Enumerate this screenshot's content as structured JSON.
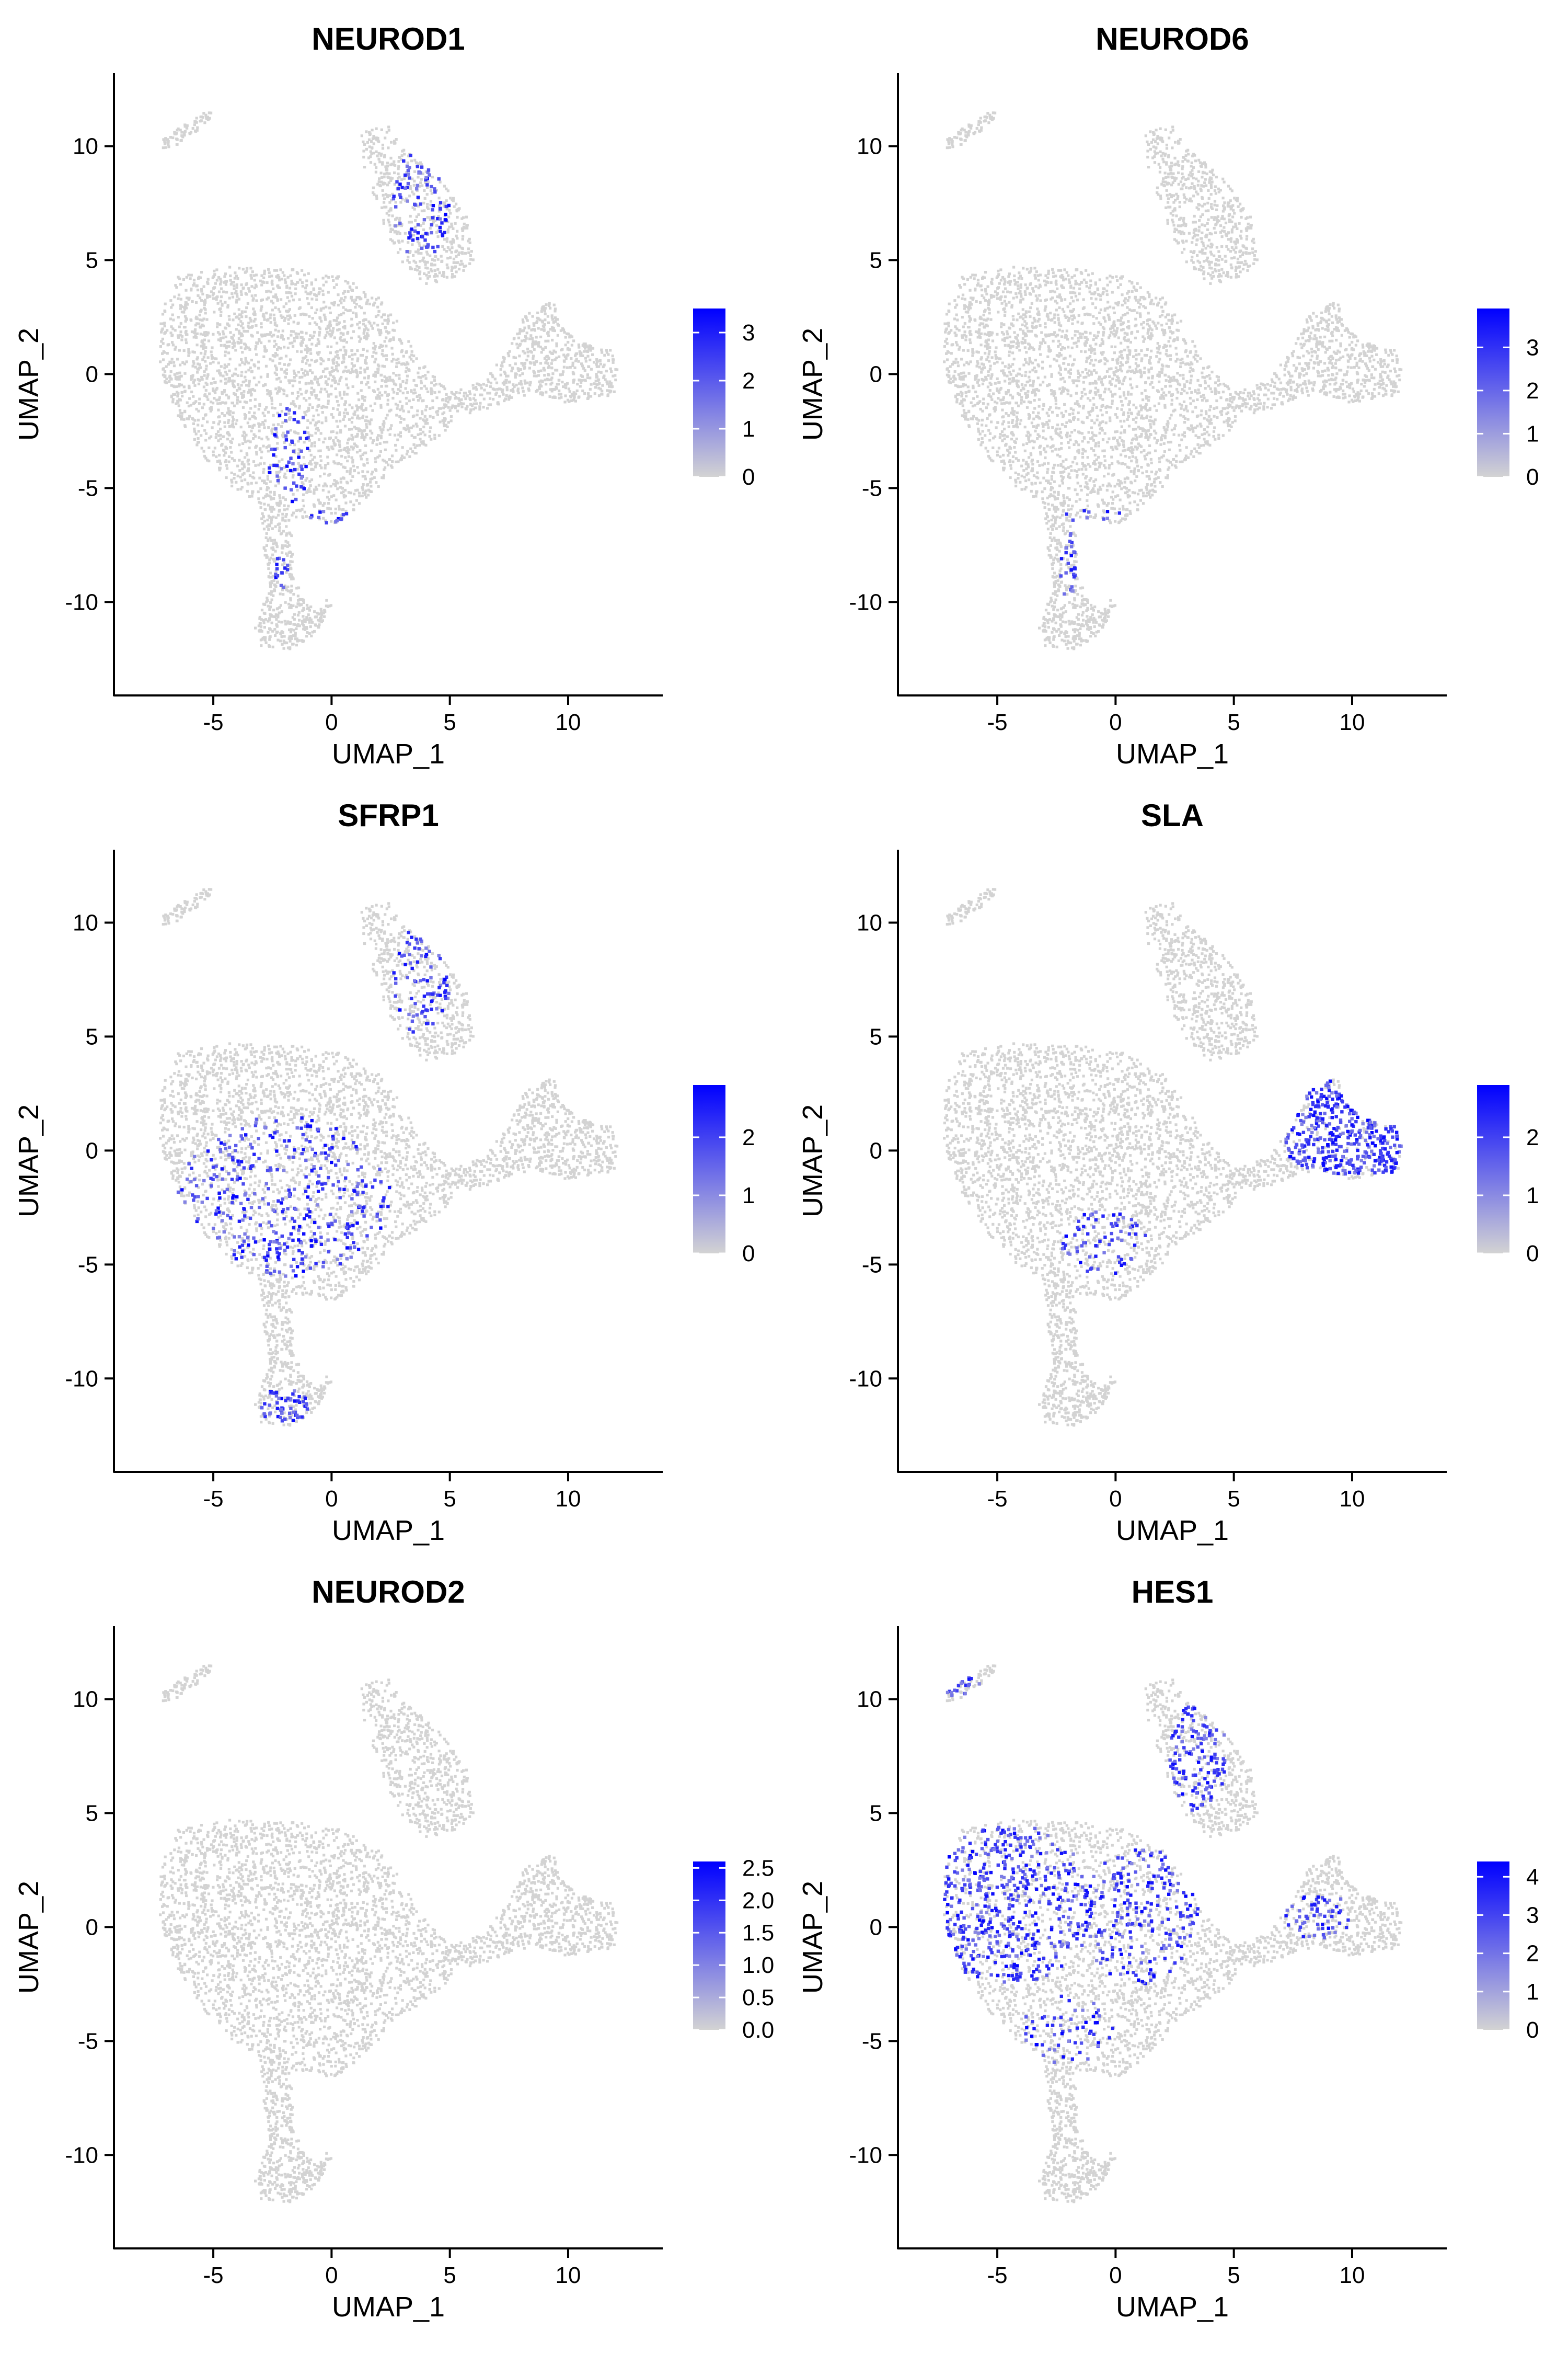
{
  "chart_data": [
    {
      "type": "scatter",
      "title": "NEUROD1",
      "xlabel": "UMAP_1",
      "ylabel": "UMAP_2",
      "xlim": [
        -9.2,
        14
      ],
      "ylim": [
        -14.1,
        13.2
      ],
      "x_ticks": [
        -5,
        0,
        5,
        10
      ],
      "y_ticks": [
        -10,
        -5,
        0,
        5,
        10
      ],
      "colorbar": {
        "low_color": "#d3d3d3",
        "high_color": "#0000ff",
        "min": 0,
        "max": 3.5,
        "ticks": [
          "0",
          "1",
          "2",
          "3"
        ]
      },
      "expression_regions": [
        {
          "x": -1.8,
          "y": -3.5,
          "rx": 0.9,
          "ry": 2.2,
          "level": 0.45
        },
        {
          "x": -2.1,
          "y": -8.5,
          "rx": 0.3,
          "ry": 1.2,
          "level": 0.35
        },
        {
          "x": 0.0,
          "y": -6.3,
          "rx": 1.0,
          "ry": 0.3,
          "level": 0.4
        },
        {
          "x": 3.8,
          "y": 7.5,
          "rx": 1.2,
          "ry": 2.5,
          "level": 0.35
        }
      ]
    },
    {
      "type": "scatter",
      "title": "NEUROD6",
      "xlabel": "UMAP_1",
      "ylabel": "UMAP_2",
      "xlim": [
        -9.2,
        14
      ],
      "ylim": [
        -14.1,
        13.2
      ],
      "x_ticks": [
        -5,
        0,
        5,
        10
      ],
      "y_ticks": [
        -10,
        -5,
        0,
        5,
        10
      ],
      "colorbar": {
        "low_color": "#d3d3d3",
        "high_color": "#0000ff",
        "min": 0,
        "max": 3.9,
        "ticks": [
          "0",
          "1",
          "2",
          "3"
        ]
      },
      "expression_regions": [
        {
          "x": -2.0,
          "y": -8.5,
          "rx": 0.35,
          "ry": 1.6,
          "level": 0.45
        },
        {
          "x": -1.0,
          "y": -6.2,
          "rx": 1.4,
          "ry": 0.3,
          "level": 0.35
        }
      ]
    },
    {
      "type": "scatter",
      "title": "SFRP1",
      "xlabel": "UMAP_1",
      "ylabel": "UMAP_2",
      "xlim": [
        -9.2,
        14
      ],
      "ylim": [
        -14.1,
        13.2
      ],
      "x_ticks": [
        -5,
        0,
        5,
        10
      ],
      "y_ticks": [
        -10,
        -5,
        0,
        5,
        10
      ],
      "colorbar": {
        "low_color": "#d3d3d3",
        "high_color": "#0000ff",
        "min": 0,
        "max": 2.9,
        "ticks": [
          "0",
          "1",
          "2"
        ]
      },
      "expression_regions": [
        {
          "x": -2.0,
          "y": -2.0,
          "rx": 4.5,
          "ry": 3.5,
          "level": 0.3
        },
        {
          "x": -1.8,
          "y": -3.8,
          "rx": 0.9,
          "ry": 1.8,
          "level": 0.45
        },
        {
          "x": -2.0,
          "y": -11.2,
          "rx": 1.0,
          "ry": 0.8,
          "level": 0.5
        },
        {
          "x": 3.8,
          "y": 7.5,
          "rx": 1.2,
          "ry": 2.5,
          "level": 0.35
        }
      ]
    },
    {
      "type": "scatter",
      "title": "SLA",
      "xlabel": "UMAP_1",
      "ylabel": "UMAP_2",
      "xlim": [
        -9.2,
        14
      ],
      "ylim": [
        -14.1,
        13.2
      ],
      "x_ticks": [
        -5,
        0,
        5,
        10
      ],
      "y_ticks": [
        -10,
        -5,
        0,
        5,
        10
      ],
      "colorbar": {
        "low_color": "#d3d3d3",
        "high_color": "#0000ff",
        "min": 0,
        "max": 2.9,
        "ticks": [
          "0",
          "1",
          "2"
        ]
      },
      "expression_regions": [
        {
          "x": 9.5,
          "y": 0.5,
          "rx": 2.5,
          "ry": 1.6,
          "level": 0.7
        },
        {
          "x": 8.8,
          "y": 2.2,
          "rx": 0.8,
          "ry": 1.0,
          "level": 0.6
        },
        {
          "x": 11.5,
          "y": 0.0,
          "rx": 1.0,
          "ry": 1.2,
          "level": 0.65
        },
        {
          "x": -0.5,
          "y": -4.0,
          "rx": 1.8,
          "ry": 1.5,
          "level": 0.3
        }
      ]
    },
    {
      "type": "scatter",
      "title": "NEUROD2",
      "xlabel": "UMAP_1",
      "ylabel": "UMAP_2",
      "xlim": [
        -9.2,
        14
      ],
      "ylim": [
        -14.1,
        13.2
      ],
      "x_ticks": [
        -5,
        0,
        5,
        10
      ],
      "y_ticks": [
        -10,
        -5,
        0,
        5,
        10
      ],
      "colorbar": {
        "low_color": "#d3d3d3",
        "high_color": "#0000ff",
        "min": 0,
        "max": 2.6,
        "ticks": [
          "0.0",
          "0.5",
          "1.0",
          "1.5",
          "2.0",
          "2.5"
        ]
      },
      "expression_regions": []
    },
    {
      "type": "scatter",
      "title": "HES1",
      "xlabel": "UMAP_1",
      "ylabel": "UMAP_2",
      "xlim": [
        -9.2,
        14
      ],
      "ylim": [
        -14.1,
        13.2
      ],
      "x_ticks": [
        -5,
        0,
        5,
        10
      ],
      "y_ticks": [
        -10,
        -5,
        0,
        5,
        10
      ],
      "colorbar": {
        "low_color": "#d3d3d3",
        "high_color": "#0000ff",
        "min": 0,
        "max": 4.4,
        "ticks": [
          "0",
          "1",
          "2",
          "3",
          "4"
        ]
      },
      "expression_regions": [
        {
          "x": -4.5,
          "y": 1.0,
          "rx": 3.6,
          "ry": 3.5,
          "level": 0.5
        },
        {
          "x": 1.0,
          "y": 0.5,
          "rx": 2.5,
          "ry": 3.0,
          "level": 0.35
        },
        {
          "x": 3.5,
          "y": 7.5,
          "rx": 1.2,
          "ry": 2.5,
          "level": 0.5
        },
        {
          "x": -6.5,
          "y": 10.5,
          "rx": 0.8,
          "ry": 0.5,
          "level": 0.5
        },
        {
          "x": 8.5,
          "y": 0.5,
          "rx": 1.5,
          "ry": 1.0,
          "level": 0.4
        },
        {
          "x": -2.0,
          "y": -4.5,
          "rx": 2.0,
          "ry": 1.5,
          "level": 0.3
        }
      ]
    }
  ]
}
